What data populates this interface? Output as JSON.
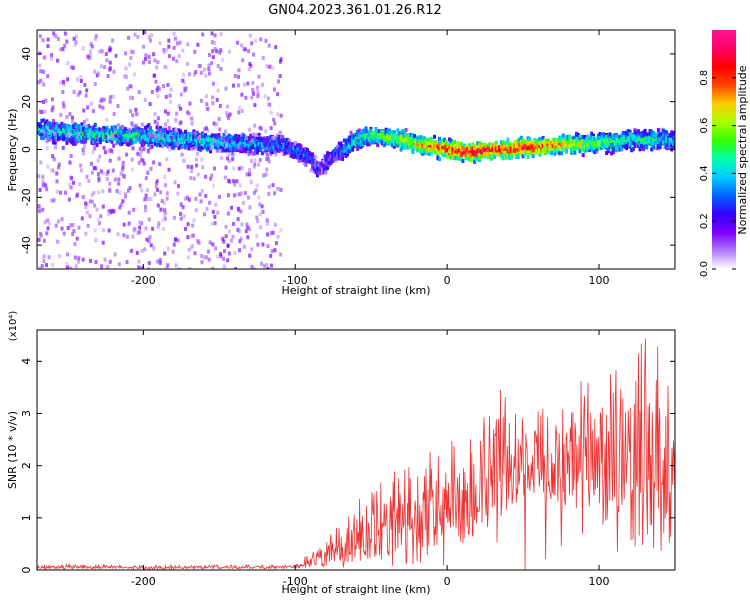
{
  "figure": {
    "title": "GN04.2023.361.01.26.R12"
  },
  "colors": {
    "snr_line": "#ee3333",
    "axis": "#000000",
    "colormap": [
      "#ffffff",
      "#b27aff",
      "#7a00ff",
      "#3300ff",
      "#0066ff",
      "#00ccff",
      "#00ffaa",
      "#33ff00",
      "#aaff00",
      "#ffcc00",
      "#ff4400",
      "#ff0000",
      "#ff0066",
      "#ff1493"
    ]
  },
  "chart_data": [
    {
      "type": "heatmap",
      "xlabel": "Height of straight line (km)",
      "ylabel": "Frequency (Hz)",
      "xlim": [
        -270,
        150
      ],
      "ylim": [
        -50,
        50
      ],
      "x_ticks": [
        -200,
        -100,
        0,
        100
      ],
      "x_tick_labels": [
        "-200",
        "-100",
        "0",
        "100"
      ],
      "y_ticks": [
        -40,
        -20,
        0,
        20,
        40
      ],
      "y_tick_labels": [
        "-40",
        "-20",
        "0",
        "20",
        "40"
      ],
      "colorbar": {
        "label": "Normalized spectral amplitude",
        "range": [
          0,
          1
        ],
        "ticks": [
          0,
          0.2,
          0.4,
          0.6,
          0.8
        ],
        "tick_labels": [
          "0.0",
          "0.2",
          "0.4",
          "0.6",
          "0.8"
        ]
      },
      "ridge": {
        "x": [
          -270,
          -250,
          -230,
          -210,
          -190,
          -170,
          -150,
          -130,
          -110,
          -95,
          -85,
          -75,
          -60,
          -50,
          -40,
          -30,
          -20,
          -10,
          0,
          10,
          20,
          30,
          40,
          50,
          60,
          70,
          80,
          90,
          100,
          110,
          120,
          130,
          140,
          150
        ],
        "y": [
          8,
          7,
          6,
          6,
          5,
          4,
          3,
          2,
          2,
          -2,
          -8,
          -2,
          4,
          6,
          5,
          4,
          2,
          1,
          0,
          -1,
          -1,
          0,
          0,
          1,
          1,
          2,
          2,
          2,
          3,
          3,
          4,
          4,
          4,
          3
        ],
        "amplitude": [
          0.4,
          0.45,
          0.45,
          0.45,
          0.45,
          0.4,
          0.4,
          0.35,
          0.3,
          0.3,
          0.2,
          0.25,
          0.45,
          0.5,
          0.55,
          0.6,
          0.7,
          0.75,
          0.85,
          0.9,
          0.9,
          0.85,
          0.85,
          0.85,
          0.8,
          0.75,
          0.7,
          0.6,
          0.55,
          0.5,
          0.45,
          0.45,
          0.4,
          0.35
        ]
      }
    },
    {
      "type": "line",
      "xlabel": "Height of straight line (km)",
      "ylabel": "SNR (10 * v/v)",
      "y_multiplier_label": "(x10⁴)",
      "xlim": [
        -270,
        150
      ],
      "ylim": [
        0,
        4.6
      ],
      "x_ticks": [
        -200,
        -100,
        0,
        100
      ],
      "x_tick_labels": [
        "-200",
        "-100",
        "0",
        "100"
      ],
      "y_ticks": [
        0,
        1,
        2,
        3,
        4
      ],
      "y_tick_labels": [
        "0",
        "1",
        "2",
        "3",
        "4"
      ],
      "series": [
        {
          "x": [
            -270,
            -250,
            -230,
            -210,
            -190,
            -170,
            -150,
            -130,
            -110,
            -100,
            -90,
            -80,
            -70,
            -60,
            -50,
            -40,
            -30,
            -20,
            -10,
            0,
            10,
            20,
            30,
            40,
            50,
            60,
            70,
            80,
            90,
            100,
            110,
            120,
            130,
            140,
            150
          ],
          "y": [
            0.05,
            0.05,
            0.05,
            0.05,
            0.04,
            0.05,
            0.05,
            0.05,
            0.05,
            0.06,
            0.15,
            0.25,
            0.4,
            0.55,
            0.7,
            0.75,
            0.75,
            0.95,
            1.1,
            1.15,
            1.25,
            1.45,
            1.75,
            2.0,
            2.05,
            2.05,
            1.95,
            1.95,
            1.9,
            1.95,
            1.95,
            1.85,
            1.75,
            1.7,
            1.7
          ],
          "envelope": [
            0.1,
            0.12,
            0.1,
            0.1,
            0.1,
            0.1,
            0.1,
            0.1,
            0.1,
            0.12,
            0.35,
            0.6,
            0.9,
            1.3,
            1.6,
            1.8,
            2.3,
            2.6,
            2.4,
            2.5,
            2.6,
            2.9,
            3.3,
            3.6,
            3.3,
            3.1,
            3.1,
            3.4,
            3.9,
            4.0,
            3.8,
            4.2,
            4.5,
            4.3,
            3.6
          ]
        }
      ]
    }
  ]
}
